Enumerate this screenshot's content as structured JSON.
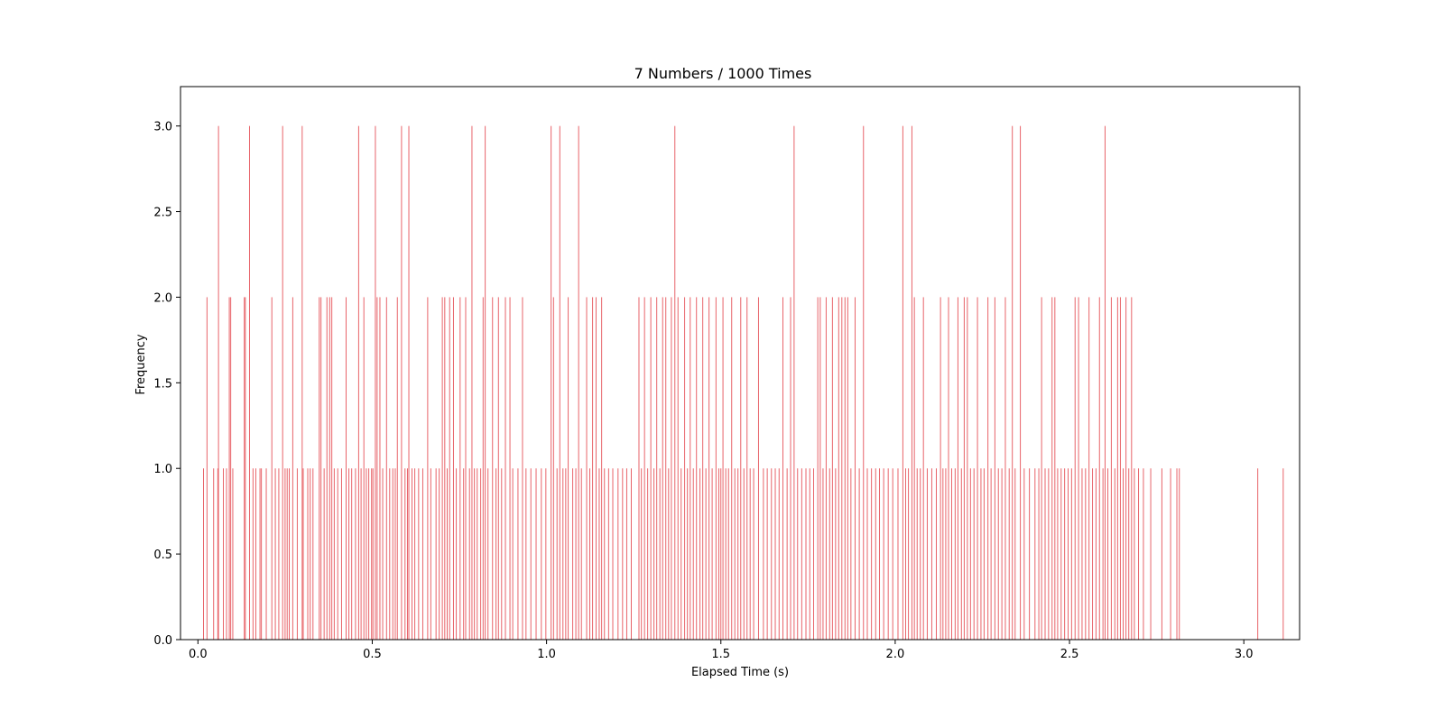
{
  "chart_data": {
    "type": "bar",
    "title": "7 Numbers / 1000 Times",
    "xlabel": "Elapsed Time (s)",
    "ylabel": "Frequency",
    "xlim": [
      -0.05,
      3.16
    ],
    "ylim": [
      0,
      3.23
    ],
    "xticks": [
      0.0,
      0.5,
      1.0,
      1.5,
      2.0,
      2.5,
      3.0
    ],
    "xtick_labels": [
      "0.0",
      "0.5",
      "1.0",
      "1.5",
      "2.0",
      "2.5",
      "3.0"
    ],
    "yticks": [
      0.0,
      0.5,
      1.0,
      1.5,
      2.0,
      2.5,
      3.0
    ],
    "ytick_labels": [
      "0.0",
      "0.5",
      "1.0",
      "1.5",
      "2.0",
      "2.5",
      "3.0"
    ],
    "grid": false,
    "bar_color": "#e8646a",
    "points": [
      [
        0.016,
        1
      ],
      [
        0.026,
        2
      ],
      [
        0.045,
        1
      ],
      [
        0.057,
        1
      ],
      [
        0.059,
        3
      ],
      [
        0.073,
        1
      ],
      [
        0.082,
        1
      ],
      [
        0.09,
        2
      ],
      [
        0.094,
        2
      ],
      [
        0.1,
        1
      ],
      [
        0.133,
        2
      ],
      [
        0.136,
        2
      ],
      [
        0.148,
        3
      ],
      [
        0.158,
        1
      ],
      [
        0.166,
        1
      ],
      [
        0.178,
        1
      ],
      [
        0.182,
        1
      ],
      [
        0.196,
        1
      ],
      [
        0.212,
        2
      ],
      [
        0.222,
        1
      ],
      [
        0.232,
        1
      ],
      [
        0.243,
        3
      ],
      [
        0.25,
        1
      ],
      [
        0.256,
        1
      ],
      [
        0.262,
        1
      ],
      [
        0.272,
        2
      ],
      [
        0.285,
        1
      ],
      [
        0.299,
        3
      ],
      [
        0.302,
        1
      ],
      [
        0.315,
        1
      ],
      [
        0.322,
        1
      ],
      [
        0.33,
        1
      ],
      [
        0.348,
        2
      ],
      [
        0.353,
        2
      ],
      [
        0.362,
        1
      ],
      [
        0.37,
        2
      ],
      [
        0.378,
        2
      ],
      [
        0.384,
        2
      ],
      [
        0.391,
        1
      ],
      [
        0.401,
        1
      ],
      [
        0.412,
        1
      ],
      [
        0.425,
        2
      ],
      [
        0.433,
        1
      ],
      [
        0.441,
        1
      ],
      [
        0.452,
        1
      ],
      [
        0.461,
        3
      ],
      [
        0.468,
        1
      ],
      [
        0.476,
        2
      ],
      [
        0.483,
        1
      ],
      [
        0.49,
        1
      ],
      [
        0.498,
        1
      ],
      [
        0.502,
        1
      ],
      [
        0.509,
        3
      ],
      [
        0.514,
        2
      ],
      [
        0.522,
        2
      ],
      [
        0.53,
        1
      ],
      [
        0.541,
        2
      ],
      [
        0.55,
        1
      ],
      [
        0.559,
        1
      ],
      [
        0.566,
        1
      ],
      [
        0.572,
        2
      ],
      [
        0.584,
        3
      ],
      [
        0.594,
        1
      ],
      [
        0.601,
        1
      ],
      [
        0.605,
        3
      ],
      [
        0.614,
        1
      ],
      [
        0.622,
        1
      ],
      [
        0.633,
        1
      ],
      [
        0.645,
        1
      ],
      [
        0.659,
        2
      ],
      [
        0.668,
        1
      ],
      [
        0.683,
        1
      ],
      [
        0.692,
        1
      ],
      [
        0.701,
        2
      ],
      [
        0.708,
        2
      ],
      [
        0.715,
        1
      ],
      [
        0.722,
        2
      ],
      [
        0.733,
        2
      ],
      [
        0.741,
        1
      ],
      [
        0.752,
        2
      ],
      [
        0.762,
        1
      ],
      [
        0.768,
        2
      ],
      [
        0.779,
        1
      ],
      [
        0.786,
        3
      ],
      [
        0.793,
        1
      ],
      [
        0.801,
        1
      ],
      [
        0.811,
        1
      ],
      [
        0.818,
        2
      ],
      [
        0.824,
        3
      ],
      [
        0.832,
        1
      ],
      [
        0.845,
        2
      ],
      [
        0.855,
        1
      ],
      [
        0.862,
        2
      ],
      [
        0.871,
        1
      ],
      [
        0.882,
        2
      ],
      [
        0.895,
        2
      ],
      [
        0.903,
        1
      ],
      [
        0.918,
        1
      ],
      [
        0.931,
        2
      ],
      [
        0.941,
        1
      ],
      [
        0.955,
        1
      ],
      [
        0.97,
        1
      ],
      [
        0.985,
        1
      ],
      [
        0.998,
        1
      ],
      [
        1.013,
        3
      ],
      [
        1.02,
        2
      ],
      [
        1.03,
        1
      ],
      [
        1.038,
        3
      ],
      [
        1.047,
        1
      ],
      [
        1.055,
        1
      ],
      [
        1.062,
        2
      ],
      [
        1.075,
        1
      ],
      [
        1.084,
        1
      ],
      [
        1.092,
        3
      ],
      [
        1.1,
        1
      ],
      [
        1.115,
        2
      ],
      [
        1.124,
        1
      ],
      [
        1.132,
        2
      ],
      [
        1.142,
        2
      ],
      [
        1.151,
        1
      ],
      [
        1.158,
        2
      ],
      [
        1.166,
        1
      ],
      [
        1.178,
        1
      ],
      [
        1.19,
        1
      ],
      [
        1.205,
        1
      ],
      [
        1.218,
        1
      ],
      [
        1.23,
        1
      ],
      [
        1.243,
        1
      ],
      [
        1.265,
        2
      ],
      [
        1.272,
        1
      ],
      [
        1.281,
        2
      ],
      [
        1.29,
        1
      ],
      [
        1.299,
        2
      ],
      [
        1.308,
        1
      ],
      [
        1.316,
        2
      ],
      [
        1.325,
        1
      ],
      [
        1.333,
        2
      ],
      [
        1.342,
        2
      ],
      [
        1.35,
        1
      ],
      [
        1.358,
        2
      ],
      [
        1.368,
        3
      ],
      [
        1.377,
        2
      ],
      [
        1.386,
        1
      ],
      [
        1.396,
        2
      ],
      [
        1.404,
        1
      ],
      [
        1.412,
        2
      ],
      [
        1.421,
        1
      ],
      [
        1.43,
        2
      ],
      [
        1.44,
        1
      ],
      [
        1.448,
        2
      ],
      [
        1.457,
        1
      ],
      [
        1.466,
        2
      ],
      [
        1.475,
        1
      ],
      [
        1.486,
        2
      ],
      [
        1.494,
        1
      ],
      [
        1.5,
        1
      ],
      [
        1.506,
        2
      ],
      [
        1.514,
        1
      ],
      [
        1.522,
        1
      ],
      [
        1.531,
        2
      ],
      [
        1.54,
        1
      ],
      [
        1.549,
        1
      ],
      [
        1.557,
        2
      ],
      [
        1.566,
        1
      ],
      [
        1.575,
        2
      ],
      [
        1.584,
        1
      ],
      [
        1.594,
        1
      ],
      [
        1.608,
        2
      ],
      [
        1.622,
        1
      ],
      [
        1.633,
        1
      ],
      [
        1.645,
        1
      ],
      [
        1.656,
        1
      ],
      [
        1.667,
        1
      ],
      [
        1.678,
        2
      ],
      [
        1.69,
        1
      ],
      [
        1.7,
        2
      ],
      [
        1.71,
        3
      ],
      [
        1.72,
        1
      ],
      [
        1.732,
        1
      ],
      [
        1.744,
        1
      ],
      [
        1.755,
        1
      ],
      [
        1.766,
        1
      ],
      [
        1.778,
        2
      ],
      [
        1.785,
        2
      ],
      [
        1.793,
        1
      ],
      [
        1.802,
        2
      ],
      [
        1.812,
        1
      ],
      [
        1.82,
        2
      ],
      [
        1.829,
        1
      ],
      [
        1.838,
        2
      ],
      [
        1.847,
        2
      ],
      [
        1.856,
        2
      ],
      [
        1.864,
        2
      ],
      [
        1.873,
        1
      ],
      [
        1.885,
        2
      ],
      [
        1.897,
        1
      ],
      [
        1.909,
        3
      ],
      [
        1.92,
        1
      ],
      [
        1.932,
        1
      ],
      [
        1.944,
        1
      ],
      [
        1.955,
        1
      ],
      [
        1.967,
        1
      ],
      [
        1.98,
        1
      ],
      [
        1.993,
        1
      ],
      [
        2.008,
        1
      ],
      [
        2.022,
        3
      ],
      [
        2.03,
        1
      ],
      [
        2.038,
        1
      ],
      [
        2.048,
        3
      ],
      [
        2.055,
        2
      ],
      [
        2.063,
        1
      ],
      [
        2.072,
        1
      ],
      [
        2.081,
        2
      ],
      [
        2.092,
        1
      ],
      [
        2.105,
        1
      ],
      [
        2.118,
        1
      ],
      [
        2.13,
        2
      ],
      [
        2.137,
        1
      ],
      [
        2.145,
        1
      ],
      [
        2.153,
        2
      ],
      [
        2.162,
        1
      ],
      [
        2.172,
        1
      ],
      [
        2.18,
        2
      ],
      [
        2.19,
        1
      ],
      [
        2.198,
        2
      ],
      [
        2.207,
        2
      ],
      [
        2.216,
        1
      ],
      [
        2.226,
        1
      ],
      [
        2.236,
        2
      ],
      [
        2.246,
        1
      ],
      [
        2.255,
        1
      ],
      [
        2.266,
        2
      ],
      [
        2.275,
        1
      ],
      [
        2.286,
        2
      ],
      [
        2.296,
        1
      ],
      [
        2.306,
        1
      ],
      [
        2.316,
        2
      ],
      [
        2.327,
        1
      ],
      [
        2.336,
        3
      ],
      [
        2.344,
        1
      ],
      [
        2.359,
        3
      ],
      [
        2.37,
        1
      ],
      [
        2.385,
        1
      ],
      [
        2.401,
        1
      ],
      [
        2.412,
        1
      ],
      [
        2.42,
        2
      ],
      [
        2.43,
        1
      ],
      [
        2.44,
        1
      ],
      [
        2.45,
        2
      ],
      [
        2.458,
        2
      ],
      [
        2.466,
        1
      ],
      [
        2.476,
        1
      ],
      [
        2.486,
        1
      ],
      [
        2.496,
        1
      ],
      [
        2.506,
        1
      ],
      [
        2.516,
        2
      ],
      [
        2.526,
        2
      ],
      [
        2.536,
        1
      ],
      [
        2.546,
        1
      ],
      [
        2.556,
        2
      ],
      [
        2.566,
        1
      ],
      [
        2.576,
        1
      ],
      [
        2.586,
        2
      ],
      [
        2.596,
        1
      ],
      [
        2.602,
        3
      ],
      [
        2.61,
        1
      ],
      [
        2.62,
        2
      ],
      [
        2.63,
        1
      ],
      [
        2.638,
        2
      ],
      [
        2.646,
        2
      ],
      [
        2.654,
        1
      ],
      [
        2.662,
        2
      ],
      [
        2.67,
        1
      ],
      [
        2.678,
        2
      ],
      [
        2.686,
        1
      ],
      [
        2.698,
        1
      ],
      [
        2.712,
        1
      ],
      [
        2.733,
        1
      ],
      [
        2.765,
        1
      ],
      [
        2.79,
        1
      ],
      [
        2.808,
        1
      ],
      [
        2.815,
        1
      ],
      [
        3.04,
        1
      ],
      [
        3.113,
        1
      ]
    ]
  }
}
